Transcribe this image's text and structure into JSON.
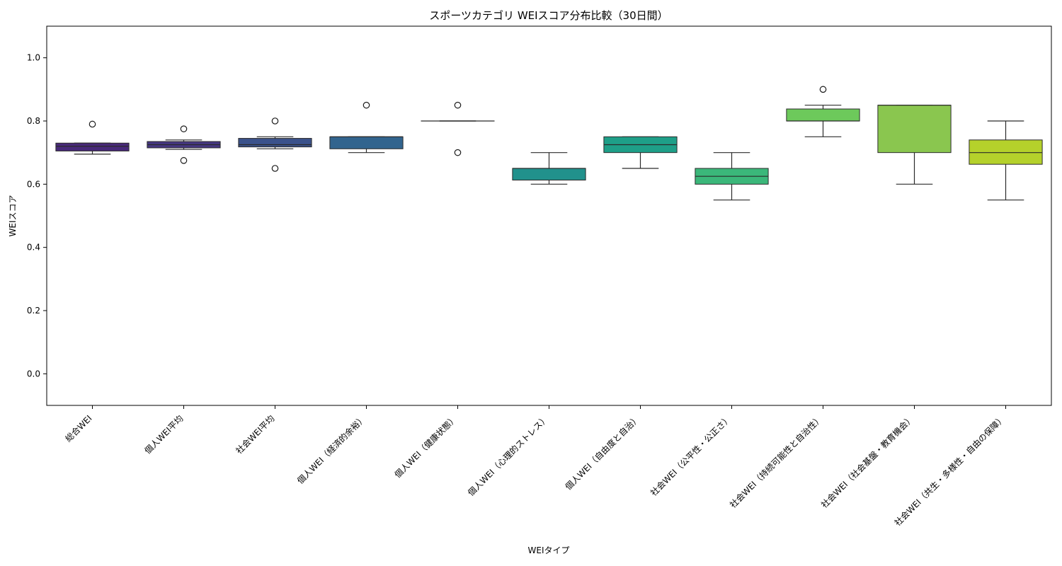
{
  "chart_data": {
    "type": "box",
    "title": "スポーツカテゴリ WEIスコア分布比較（30日間）",
    "xlabel": "WEIタイプ",
    "ylabel": "WEIスコア",
    "ylim": [
      -0.1,
      1.1
    ],
    "yticks": [
      "0.0",
      "0.2",
      "0.4",
      "0.6",
      "0.8",
      "1.0"
    ],
    "grid": false,
    "categories": [
      "総合WEI",
      "個人WEI平均",
      "社会WEI平均",
      "個人WEI（経済的余裕）",
      "個人WEI（健康状態）",
      "個人WEI（心理的ストレス）",
      "個人WEI（自由度と自治）",
      "社会WEI（公平性・公正さ）",
      "社会WEI（持続可能性と自治性）",
      "社会WEI（社会基盤・教育機会）",
      "社会WEI（共生・多様性・自由の保障）"
    ],
    "colors": [
      "#482979",
      "#453781",
      "#3b528b",
      "#32648e",
      "#2a788e",
      "#21918c",
      "#1e9f88",
      "#3bb77a",
      "#6dc95b",
      "#8ac64f",
      "#b5d12b"
    ],
    "boxes": [
      {
        "min": 0.695,
        "q1": 0.705,
        "median": 0.72,
        "q3": 0.73,
        "max": 0.73,
        "outliers": [
          0.79
        ]
      },
      {
        "min": 0.71,
        "q1": 0.715,
        "median": 0.725,
        "q3": 0.735,
        "max": 0.74,
        "outliers": [
          0.775,
          0.675
        ]
      },
      {
        "min": 0.712,
        "q1": 0.718,
        "median": 0.725,
        "q3": 0.745,
        "max": 0.75,
        "outliers": [
          0.8,
          0.65
        ]
      },
      {
        "min": 0.7,
        "q1": 0.712,
        "median": 0.75,
        "q3": 0.75,
        "max": 0.75,
        "outliers": [
          0.85
        ]
      },
      {
        "min": 0.8,
        "q1": 0.8,
        "median": 0.8,
        "q3": 0.8,
        "max": 0.8,
        "outliers": [
          0.85,
          0.7
        ]
      },
      {
        "min": 0.6,
        "q1": 0.613,
        "median": 0.65,
        "q3": 0.65,
        "max": 0.7,
        "outliers": []
      },
      {
        "min": 0.65,
        "q1": 0.7,
        "median": 0.725,
        "q3": 0.75,
        "max": 0.75,
        "outliers": []
      },
      {
        "min": 0.55,
        "q1": 0.6,
        "median": 0.625,
        "q3": 0.65,
        "max": 0.7,
        "outliers": []
      },
      {
        "min": 0.75,
        "q1": 0.8,
        "median": 0.8,
        "q3": 0.838,
        "max": 0.85,
        "outliers": [
          0.9
        ]
      },
      {
        "min": 0.6,
        "q1": 0.7,
        "median": 0.85,
        "q3": 0.85,
        "max": 0.85,
        "outliers": []
      },
      {
        "min": 0.55,
        "q1": 0.663,
        "median": 0.7,
        "q3": 0.74,
        "max": 0.8,
        "outliers": []
      }
    ]
  }
}
